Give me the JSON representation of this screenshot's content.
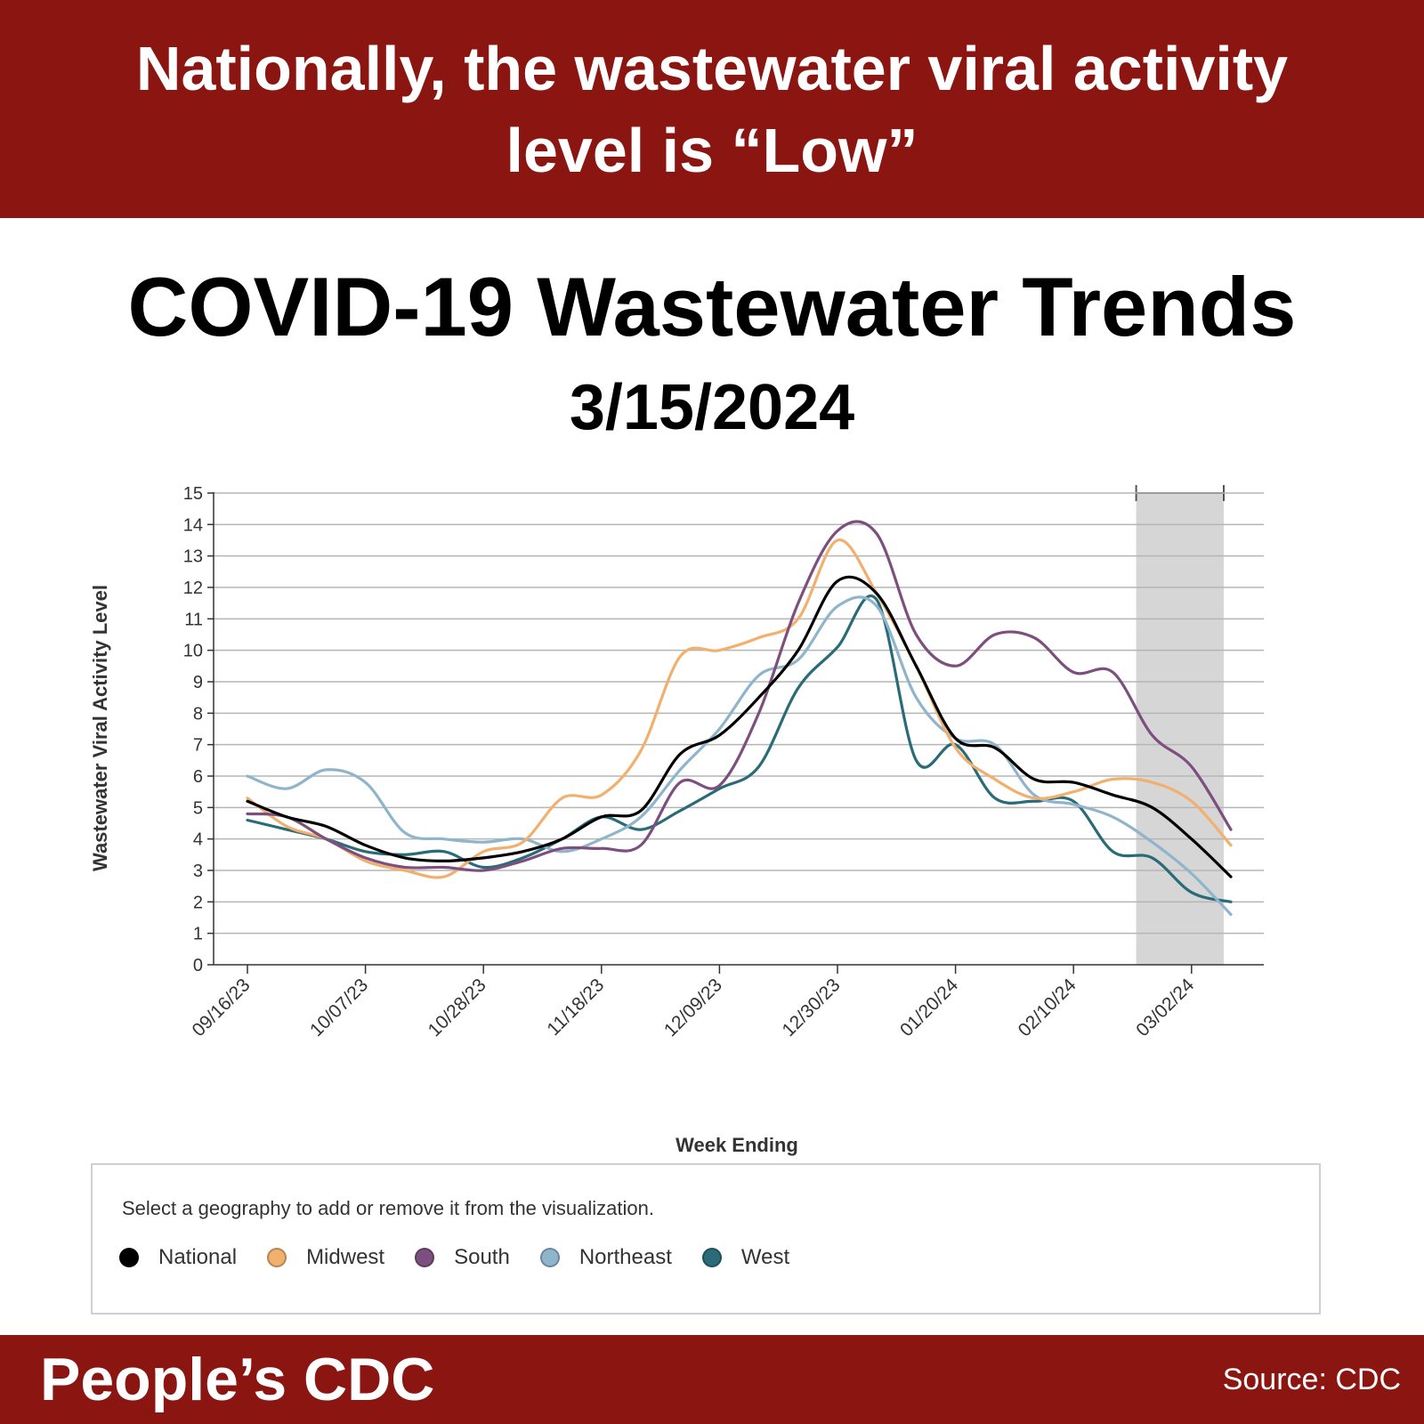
{
  "banner": {
    "line1": "Nationally, the wastewater viral activity",
    "line2": "level is “Low”"
  },
  "heading": {
    "title": "COVID-19 Wastewater Trends",
    "date": "3/15/2024"
  },
  "legend": {
    "instruction": "Select a geography to add or remove it from the visualization."
  },
  "footer": {
    "brand": "People’s CDC",
    "source": "Source: CDC"
  },
  "colors": {
    "banner": "#8b1510",
    "shade": "#d6d6d6"
  },
  "chart_data": {
    "type": "line",
    "ylabel": "Wastewater Viral Activity Level",
    "xlabel": "Week Ending",
    "ylim": [
      0,
      15
    ],
    "y_ticks": [
      0,
      1,
      2,
      3,
      4,
      5,
      6,
      7,
      8,
      9,
      10,
      11,
      12,
      13,
      14,
      15
    ],
    "x_ticks": [
      "09/16/23",
      "10/07/23",
      "10/28/23",
      "11/18/23",
      "12/09/23",
      "12/30/23",
      "01/20/24",
      "02/10/24",
      "03/02/24"
    ],
    "x_range": [
      "09/16/23",
      "03/09/24"
    ],
    "grid": "horizontal",
    "shaded_region": {
      "from": "02/24/24",
      "to": "03/09/24"
    },
    "series": [
      {
        "name": "National",
        "color": "#000000",
        "points": [
          [
            "09/16/23",
            5.2
          ],
          [
            "09/23/23",
            4.7
          ],
          [
            "09/30/23",
            4.4
          ],
          [
            "10/07/23",
            3.8
          ],
          [
            "10/14/23",
            3.4
          ],
          [
            "10/21/23",
            3.3
          ],
          [
            "10/28/23",
            3.4
          ],
          [
            "11/04/23",
            3.6
          ],
          [
            "11/11/23",
            4.0
          ],
          [
            "11/18/23",
            4.7
          ],
          [
            "11/25/23",
            4.9
          ],
          [
            "12/02/23",
            6.7
          ],
          [
            "12/09/23",
            7.3
          ],
          [
            "12/16/23",
            8.5
          ],
          [
            "12/23/23",
            10.0
          ],
          [
            "12/30/23",
            12.2
          ],
          [
            "01/06/24",
            11.8
          ],
          [
            "01/13/24",
            9.5
          ],
          [
            "01/20/24",
            7.2
          ],
          [
            "01/27/24",
            6.9
          ],
          [
            "02/03/24",
            5.9
          ],
          [
            "02/10/24",
            5.8
          ],
          [
            "02/17/24",
            5.4
          ],
          [
            "02/24/24",
            5.0
          ],
          [
            "03/02/24",
            4.0
          ],
          [
            "03/09/24",
            2.8
          ]
        ]
      },
      {
        "name": "Midwest",
        "color": "#f2b06e",
        "points": [
          [
            "09/16/23",
            5.3
          ],
          [
            "09/23/23",
            4.4
          ],
          [
            "09/30/23",
            4.0
          ],
          [
            "10/07/23",
            3.3
          ],
          [
            "10/14/23",
            3.0
          ],
          [
            "10/21/23",
            2.8
          ],
          [
            "10/28/23",
            3.6
          ],
          [
            "11/04/23",
            3.9
          ],
          [
            "11/11/23",
            5.3
          ],
          [
            "11/18/23",
            5.4
          ],
          [
            "11/25/23",
            6.8
          ],
          [
            "12/02/23",
            9.8
          ],
          [
            "12/09/23",
            10.0
          ],
          [
            "12/16/23",
            10.4
          ],
          [
            "12/23/23",
            11.0
          ],
          [
            "12/30/23",
            13.5
          ],
          [
            "01/06/24",
            11.8
          ],
          [
            "01/13/24",
            9.5
          ],
          [
            "01/20/24",
            6.9
          ],
          [
            "01/27/24",
            5.9
          ],
          [
            "02/03/24",
            5.3
          ],
          [
            "02/10/24",
            5.5
          ],
          [
            "02/17/24",
            5.9
          ],
          [
            "02/24/24",
            5.8
          ],
          [
            "03/02/24",
            5.2
          ],
          [
            "03/09/24",
            3.8
          ]
        ]
      },
      {
        "name": "South",
        "color": "#7d4f7e",
        "points": [
          [
            "09/16/23",
            4.8
          ],
          [
            "09/23/23",
            4.7
          ],
          [
            "09/30/23",
            4.0
          ],
          [
            "10/07/23",
            3.4
          ],
          [
            "10/14/23",
            3.1
          ],
          [
            "10/21/23",
            3.1
          ],
          [
            "10/28/23",
            3.0
          ],
          [
            "11/04/23",
            3.3
          ],
          [
            "11/11/23",
            3.7
          ],
          [
            "11/18/23",
            3.7
          ],
          [
            "11/25/23",
            3.8
          ],
          [
            "12/02/23",
            5.8
          ],
          [
            "12/09/23",
            5.7
          ],
          [
            "12/16/23",
            8.0
          ],
          [
            "12/23/23",
            11.5
          ],
          [
            "12/30/23",
            13.8
          ],
          [
            "01/06/24",
            13.7
          ],
          [
            "01/13/24",
            10.5
          ],
          [
            "01/20/24",
            9.5
          ],
          [
            "01/27/24",
            10.5
          ],
          [
            "02/03/24",
            10.4
          ],
          [
            "02/10/24",
            9.3
          ],
          [
            "02/17/24",
            9.3
          ],
          [
            "02/24/24",
            7.3
          ],
          [
            "03/02/24",
            6.3
          ],
          [
            "03/09/24",
            4.3
          ]
        ]
      },
      {
        "name": "Northeast",
        "color": "#8fb5cc",
        "points": [
          [
            "09/16/23",
            6.0
          ],
          [
            "09/23/23",
            5.6
          ],
          [
            "09/30/23",
            6.2
          ],
          [
            "10/07/23",
            5.8
          ],
          [
            "10/14/23",
            4.2
          ],
          [
            "10/21/23",
            4.0
          ],
          [
            "10/28/23",
            3.9
          ],
          [
            "11/04/23",
            4.0
          ],
          [
            "11/11/23",
            3.6
          ],
          [
            "11/18/23",
            4.0
          ],
          [
            "11/25/23",
            4.7
          ],
          [
            "12/02/23",
            6.2
          ],
          [
            "12/09/23",
            7.5
          ],
          [
            "12/16/23",
            9.2
          ],
          [
            "12/23/23",
            9.7
          ],
          [
            "12/30/23",
            11.4
          ],
          [
            "01/06/24",
            11.4
          ],
          [
            "01/13/24",
            8.5
          ],
          [
            "01/20/24",
            7.2
          ],
          [
            "01/27/24",
            7.0
          ],
          [
            "02/03/24",
            5.4
          ],
          [
            "02/10/24",
            5.1
          ],
          [
            "02/17/24",
            4.7
          ],
          [
            "02/24/24",
            3.9
          ],
          [
            "03/02/24",
            2.9
          ],
          [
            "03/09/24",
            1.6
          ]
        ]
      },
      {
        "name": "West",
        "color": "#2a6b78",
        "points": [
          [
            "09/16/23",
            4.6
          ],
          [
            "09/23/23",
            4.3
          ],
          [
            "09/30/23",
            4.0
          ],
          [
            "10/07/23",
            3.6
          ],
          [
            "10/14/23",
            3.5
          ],
          [
            "10/21/23",
            3.6
          ],
          [
            "10/28/23",
            3.1
          ],
          [
            "11/04/23",
            3.4
          ],
          [
            "11/11/23",
            4.0
          ],
          [
            "11/18/23",
            4.7
          ],
          [
            "11/25/23",
            4.3
          ],
          [
            "12/02/23",
            4.9
          ],
          [
            "12/09/23",
            5.6
          ],
          [
            "12/16/23",
            6.3
          ],
          [
            "12/23/23",
            8.8
          ],
          [
            "12/30/23",
            10.1
          ],
          [
            "01/06/24",
            11.6
          ],
          [
            "01/13/24",
            6.5
          ],
          [
            "01/20/24",
            7.0
          ],
          [
            "01/27/24",
            5.3
          ],
          [
            "02/03/24",
            5.2
          ],
          [
            "02/10/24",
            5.2
          ],
          [
            "02/17/24",
            3.6
          ],
          [
            "02/24/24",
            3.4
          ],
          [
            "03/02/24",
            2.3
          ],
          [
            "03/09/24",
            2.0
          ]
        ]
      }
    ]
  }
}
